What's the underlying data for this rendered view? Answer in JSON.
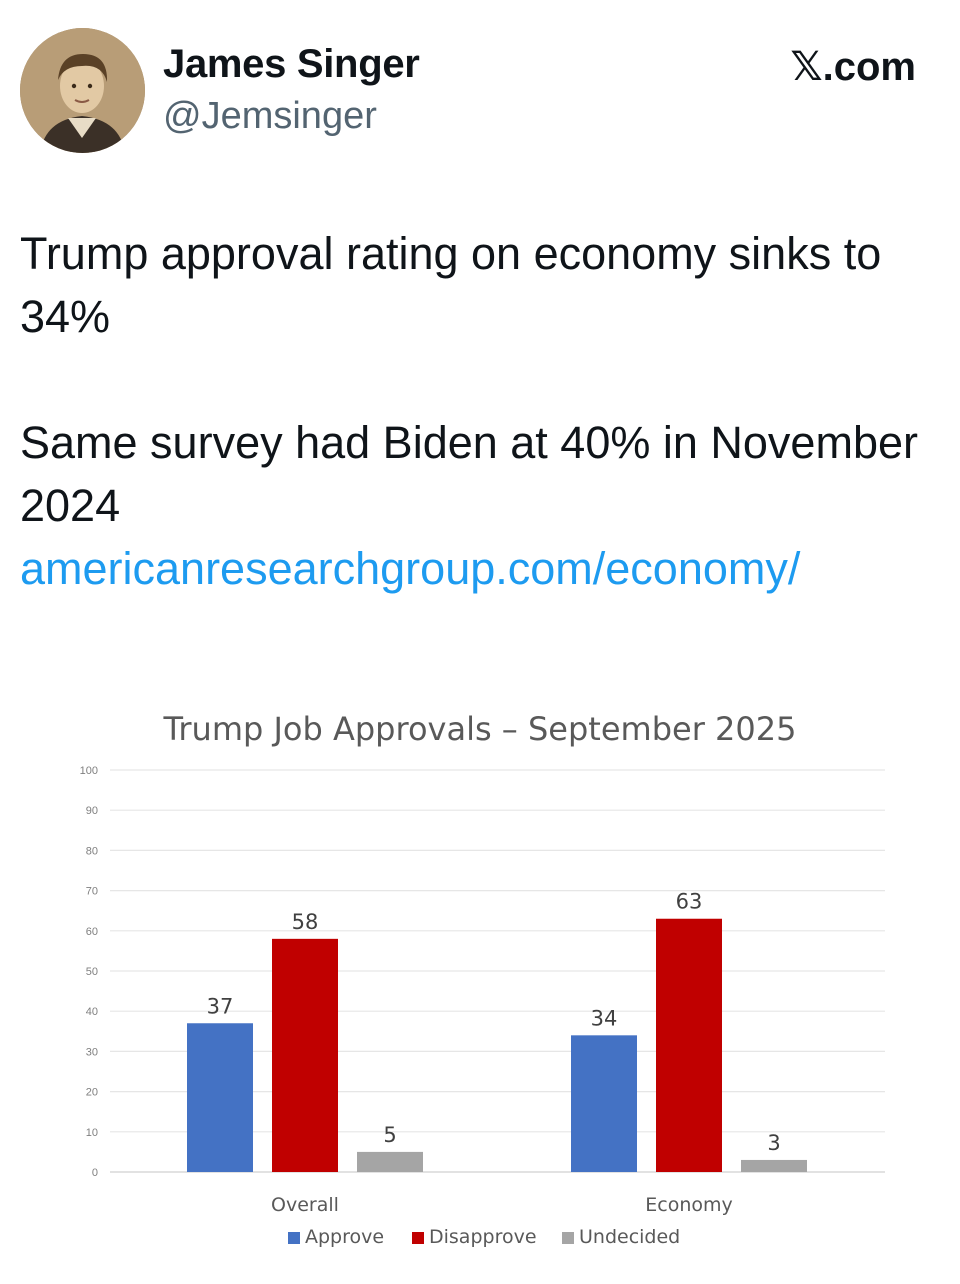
{
  "post": {
    "author_name": "James Singer",
    "author_handle": "@Jemsinger",
    "brand": "𝕏.com",
    "text_line1": "Trump approval rating on economy sinks to 34%",
    "text_line2": "Same survey had Biden at 40% in November 2024",
    "link": "americanresearchgroup.com/economy/"
  },
  "chart_data": {
    "type": "bar",
    "title": "Trump Job Approvals – September 2025",
    "categories": [
      "Overall",
      "Economy"
    ],
    "series": [
      {
        "name": "Approve",
        "color": "#4472c4",
        "values": [
          37,
          34
        ]
      },
      {
        "name": "Disapprove",
        "color": "#c00000",
        "values": [
          58,
          63
        ]
      },
      {
        "name": "Undecided",
        "color": "#a5a5a5",
        "values": [
          5,
          3
        ]
      }
    ],
    "ylim": [
      0,
      100
    ],
    "yticks": [
      0,
      10,
      20,
      30,
      40,
      50,
      60,
      70,
      80,
      90,
      100
    ],
    "grid": true,
    "legend": "bottom"
  }
}
